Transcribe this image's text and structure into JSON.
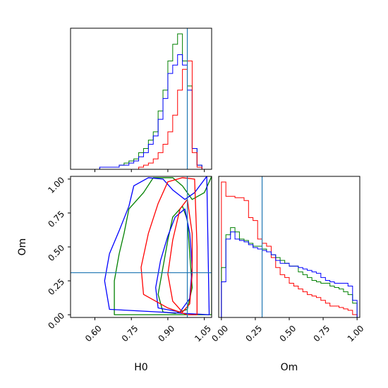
{
  "chart_data": [
    {
      "type": "histogram",
      "panel": "H0 marginal",
      "xlim": [
        0.5,
        1.08
      ],
      "show_xtick_labels": false,
      "truth": 0.98,
      "colors": {
        "red": "#ff0000",
        "green": "#008000",
        "blue": "#0000ff",
        "truth": "#1f77b4"
      },
      "bin_edges": [
        0.6,
        0.62,
        0.64,
        0.66,
        0.68,
        0.7,
        0.72,
        0.74,
        0.76,
        0.78,
        0.8,
        0.82,
        0.84,
        0.86,
        0.88,
        0.9,
        0.92,
        0.94,
        0.96,
        0.98,
        1.0,
        1.02,
        1.04
      ],
      "series": [
        {
          "color": "green",
          "values": [
            0,
            1,
            1,
            1,
            1,
            2,
            3,
            4,
            5,
            8,
            10,
            14,
            18,
            28,
            38,
            52,
            60,
            65,
            52,
            40,
            10,
            2
          ]
        },
        {
          "color": "blue",
          "values": [
            0,
            1,
            1,
            1,
            1,
            2,
            2,
            3,
            4,
            6,
            8,
            12,
            16,
            24,
            34,
            46,
            50,
            55,
            50,
            38,
            10,
            2
          ]
        },
        {
          "color": "red",
          "values": [
            0,
            0,
            0,
            0,
            0,
            0,
            0,
            0,
            0,
            1,
            2,
            3,
            5,
            8,
            12,
            18,
            26,
            38,
            48,
            52,
            8,
            1
          ]
        }
      ]
    },
    {
      "type": "contour",
      "panel": "H0 vs Om",
      "xlabel": "H0",
      "ylabel": "Om",
      "xlim": [
        0.5,
        1.08
      ],
      "ylim": [
        -0.02,
        1.02
      ],
      "xticks": [
        "0.60",
        "0.75",
        "0.90",
        "1.05"
      ],
      "xtick_values": [
        0.6,
        0.75,
        0.9,
        1.05
      ],
      "yticks": [
        "0.00",
        "0.25",
        "0.50",
        "0.75",
        "1.00"
      ],
      "ytick_values": [
        0.0,
        0.25,
        0.5,
        0.75,
        1.0
      ],
      "truth": {
        "H0": 0.98,
        "Om": 0.31
      },
      "contours": [
        {
          "color": "green",
          "level": "outer",
          "points": [
            [
              0.68,
              0.0
            ],
            [
              0.68,
              0.25
            ],
            [
              0.7,
              0.45
            ],
            [
              0.72,
              0.6
            ],
            [
              0.74,
              0.78
            ],
            [
              0.8,
              0.9
            ],
            [
              0.84,
              1.01
            ],
            [
              0.92,
              1.01
            ],
            [
              0.96,
              0.95
            ],
            [
              1.0,
              0.85
            ],
            [
              1.05,
              0.9
            ],
            [
              1.08,
              1.02
            ],
            [
              1.08,
              0.0
            ]
          ]
        },
        {
          "color": "green",
          "level": "inner",
          "points": [
            [
              0.88,
              0.02
            ],
            [
              0.86,
              0.15
            ],
            [
              0.88,
              0.35
            ],
            [
              0.9,
              0.55
            ],
            [
              0.92,
              0.72
            ],
            [
              0.96,
              0.8
            ],
            [
              0.98,
              0.7
            ],
            [
              0.99,
              0.45
            ],
            [
              1.0,
              0.2
            ],
            [
              0.98,
              0.04
            ],
            [
              0.93,
              0.01
            ]
          ]
        },
        {
          "color": "blue",
          "level": "outer",
          "points": [
            [
              0.66,
              0.04
            ],
            [
              0.64,
              0.25
            ],
            [
              0.66,
              0.45
            ],
            [
              0.7,
              0.62
            ],
            [
              0.74,
              0.8
            ],
            [
              0.76,
              0.95
            ],
            [
              0.82,
              1.01
            ],
            [
              0.88,
              1.0
            ],
            [
              0.92,
              0.92
            ],
            [
              0.97,
              0.85
            ],
            [
              1.01,
              0.9
            ],
            [
              1.06,
              1.02
            ],
            [
              1.07,
              0.0
            ]
          ]
        },
        {
          "color": "blue",
          "level": "inner",
          "points": [
            [
              0.86,
              0.05
            ],
            [
              0.85,
              0.2
            ],
            [
              0.87,
              0.4
            ],
            [
              0.9,
              0.58
            ],
            [
              0.93,
              0.72
            ],
            [
              0.97,
              0.78
            ],
            [
              0.99,
              0.6
            ],
            [
              1.0,
              0.35
            ],
            [
              0.99,
              0.12
            ],
            [
              0.95,
              0.02
            ]
          ]
        },
        {
          "color": "red",
          "level": "outer",
          "points": [
            [
              0.8,
              0.15
            ],
            [
              0.79,
              0.35
            ],
            [
              0.82,
              0.6
            ],
            [
              0.86,
              0.82
            ],
            [
              0.9,
              0.98
            ],
            [
              0.96,
              1.01
            ],
            [
              1.01,
              1.0
            ],
            [
              1.02,
              0.5
            ],
            [
              1.02,
              0.0
            ],
            [
              0.98,
              0.0
            ],
            [
              0.9,
              0.05
            ]
          ]
        },
        {
          "color": "red",
          "level": "inner",
          "points": [
            [
              0.92,
              0.1
            ],
            [
              0.9,
              0.3
            ],
            [
              0.92,
              0.55
            ],
            [
              0.95,
              0.78
            ],
            [
              0.98,
              0.85
            ],
            [
              1.0,
              0.6
            ],
            [
              1.0,
              0.3
            ],
            [
              0.99,
              0.08
            ],
            [
              0.96,
              0.02
            ]
          ]
        }
      ]
    },
    {
      "type": "histogram",
      "panel": "Om marginal",
      "xlabel": "Om",
      "xlim": [
        -0.02,
        1.02
      ],
      "xticks": [
        "0.00",
        "0.25",
        "0.50",
        "0.75",
        "1.00"
      ],
      "xtick_values": [
        0.0,
        0.25,
        0.5,
        0.75,
        1.0
      ],
      "truth": 0.3,
      "bin_edges": [
        0.0,
        0.033,
        0.067,
        0.1,
        0.133,
        0.167,
        0.2,
        0.233,
        0.267,
        0.3,
        0.333,
        0.367,
        0.4,
        0.433,
        0.467,
        0.5,
        0.533,
        0.567,
        0.6,
        0.633,
        0.667,
        0.7,
        0.733,
        0.767,
        0.8,
        0.833,
        0.867,
        0.9,
        0.933,
        0.967,
        1.0
      ],
      "series": [
        {
          "color": "red",
          "values": [
            95,
            85,
            85,
            84,
            84,
            82,
            70,
            68,
            55,
            52,
            50,
            42,
            35,
            30,
            28,
            24,
            22,
            20,
            18,
            16,
            15,
            14,
            12,
            10,
            8,
            8,
            7,
            6,
            5,
            2
          ]
        },
        {
          "color": "green",
          "values": [
            35,
            58,
            63,
            60,
            55,
            54,
            52,
            50,
            50,
            48,
            46,
            44,
            42,
            40,
            38,
            36,
            36,
            32,
            30,
            28,
            26,
            25,
            24,
            24,
            22,
            21,
            20,
            18,
            16,
            10
          ]
        },
        {
          "color": "blue",
          "values": [
            25,
            55,
            60,
            55,
            54,
            53,
            51,
            49,
            48,
            47,
            46,
            44,
            40,
            38,
            38,
            36,
            36,
            35,
            34,
            33,
            32,
            31,
            28,
            26,
            25,
            24,
            24,
            24,
            22,
            12
          ]
        }
      ]
    }
  ]
}
